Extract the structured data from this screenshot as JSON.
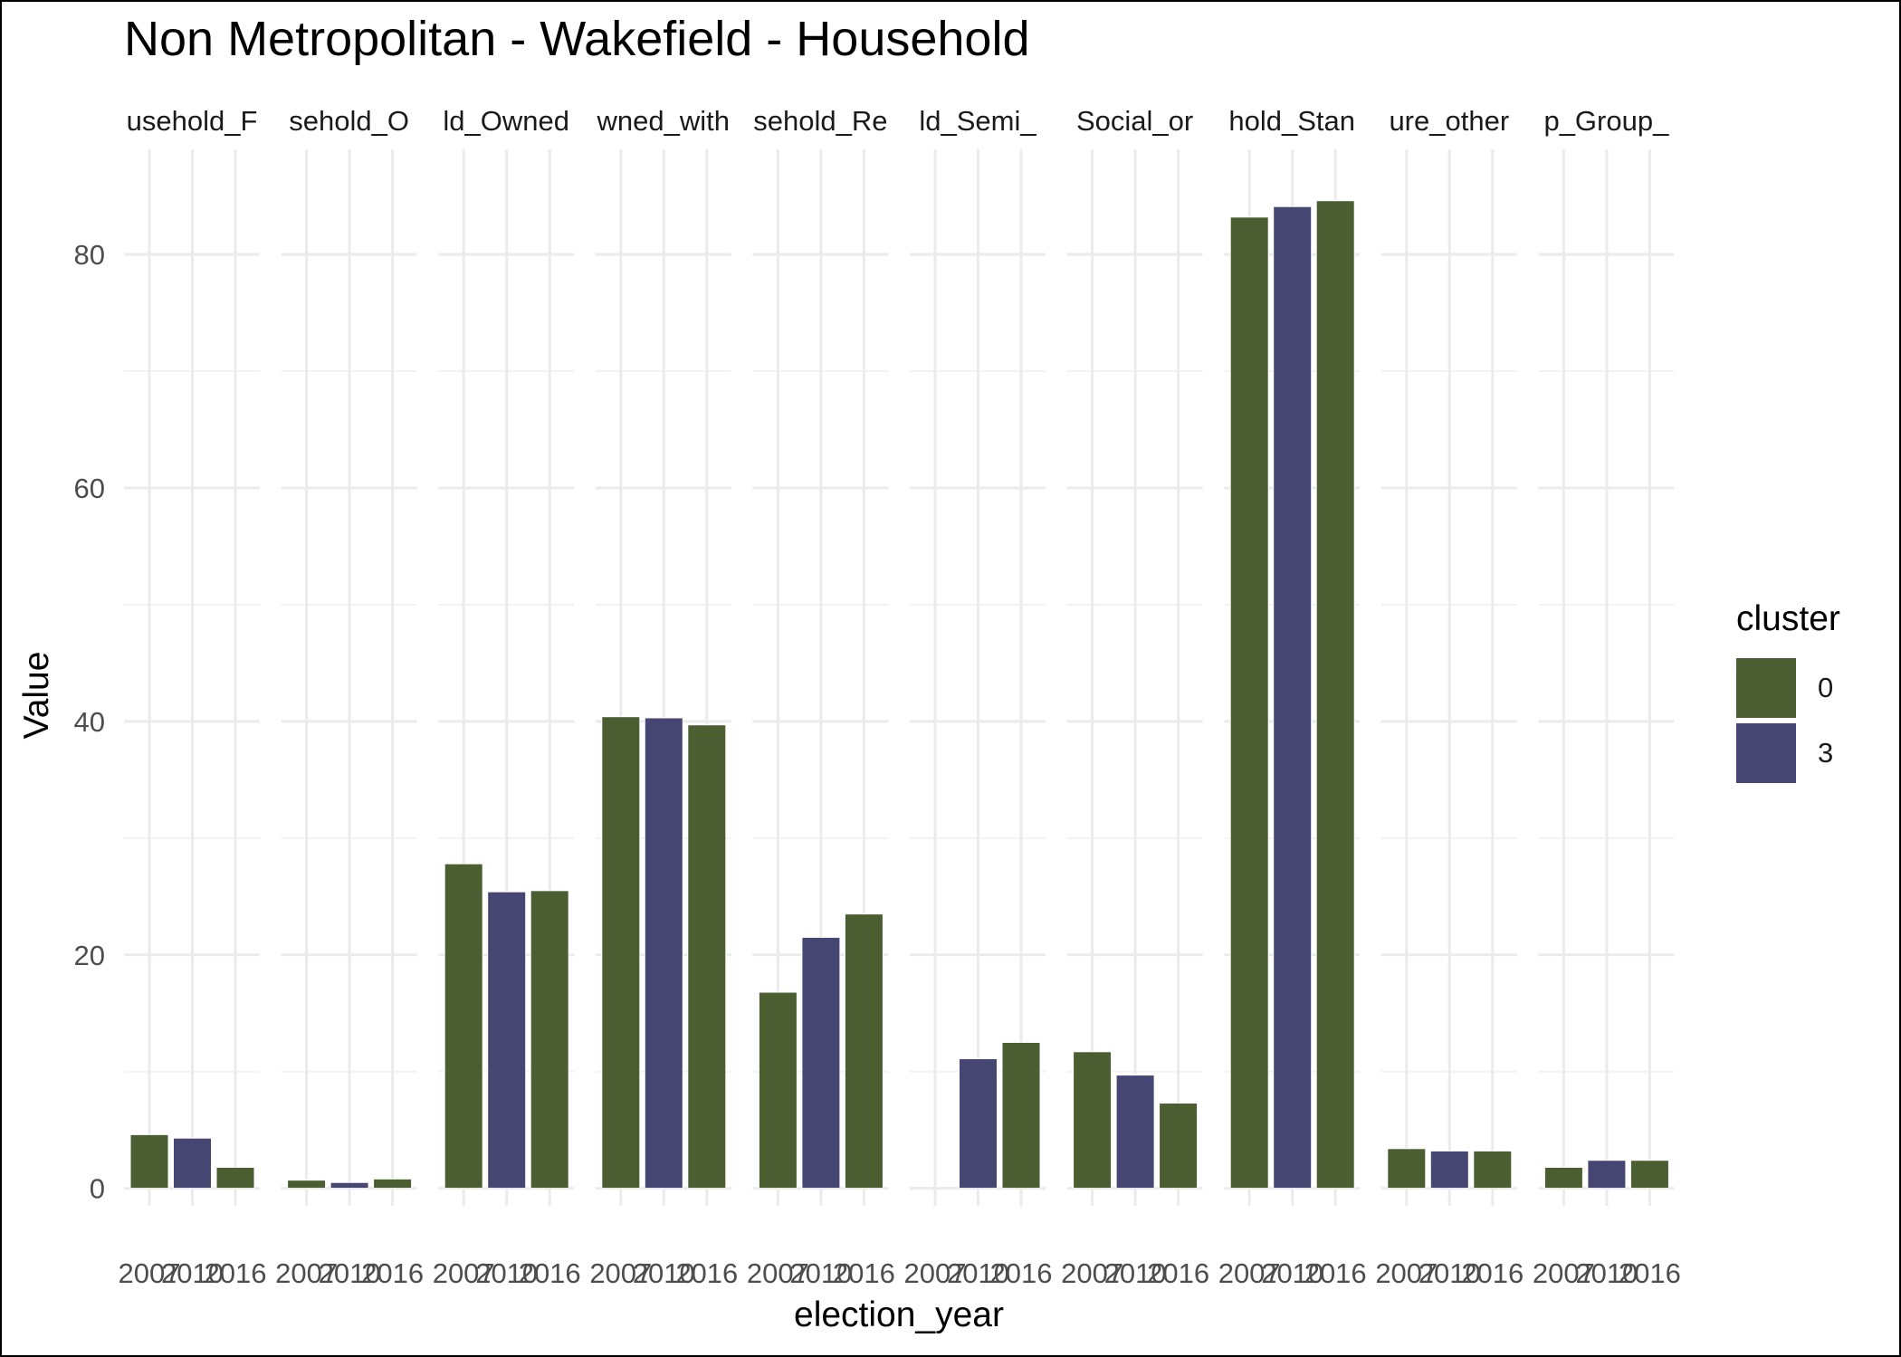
{
  "chart_data": {
    "type": "bar",
    "title": "Non Metropolitan - Wakefield - Household",
    "xlabel": "election_year",
    "ylabel": "Value",
    "ylim": [
      -1.5,
      89
    ],
    "yticks": [
      0,
      20,
      40,
      60,
      80
    ],
    "grid": true,
    "legend_position": "right",
    "legend": {
      "title": "cluster",
      "entries": [
        {
          "label": "0",
          "color": "#4a5e32"
        },
        {
          "label": "3",
          "color": "#464673"
        }
      ]
    },
    "facets": [
      {
        "strip": "usehold_F",
        "x": [
          "2007",
          "2010",
          "2016"
        ],
        "values": [
          4.6,
          4.3,
          1.8
        ],
        "cluster": [
          "0",
          "3",
          "0"
        ]
      },
      {
        "strip": "sehold_O",
        "x": [
          "2007",
          "2010",
          "2016"
        ],
        "values": [
          0.7,
          0.5,
          0.8
        ],
        "cluster": [
          "0",
          "3",
          "0"
        ]
      },
      {
        "strip": "ld_Owned",
        "x": [
          "2007",
          "2010",
          "2016"
        ],
        "values": [
          27.8,
          25.4,
          25.5
        ],
        "cluster": [
          "0",
          "3",
          "0"
        ]
      },
      {
        "strip": "wned_with",
        "x": [
          "2007",
          "2010",
          "2016"
        ],
        "values": [
          40.4,
          40.3,
          39.7
        ],
        "cluster": [
          "0",
          "3",
          "0"
        ]
      },
      {
        "strip": "sehold_Re",
        "x": [
          "2007",
          "2010",
          "2016"
        ],
        "values": [
          16.8,
          21.5,
          23.5
        ],
        "cluster": [
          "0",
          "3",
          "0"
        ]
      },
      {
        "strip": "ld_Semi_",
        "x": [
          "2007",
          "2010",
          "2016"
        ],
        "values": [
          null,
          11.1,
          12.5
        ],
        "cluster": [
          "0",
          "3",
          "0"
        ]
      },
      {
        "strip": "Social_or",
        "x": [
          "2007",
          "2010",
          "2016"
        ],
        "values": [
          11.7,
          9.7,
          7.3
        ],
        "cluster": [
          "0",
          "3",
          "0"
        ]
      },
      {
        "strip": "hold_Stan",
        "x": [
          "2007",
          "2010",
          "2016"
        ],
        "values": [
          83.2,
          84.1,
          84.6
        ],
        "cluster": [
          "0",
          "3",
          "0"
        ]
      },
      {
        "strip": "ure_other",
        "x": [
          "2007",
          "2010",
          "2016"
        ],
        "values": [
          3.4,
          3.2,
          3.2
        ],
        "cluster": [
          "0",
          "3",
          "0"
        ]
      },
      {
        "strip": "p_Group_",
        "x": [
          "2007",
          "2010",
          "2016"
        ],
        "values": [
          1.8,
          2.4,
          2.4
        ],
        "cluster": [
          "0",
          "3",
          "0"
        ]
      }
    ]
  }
}
